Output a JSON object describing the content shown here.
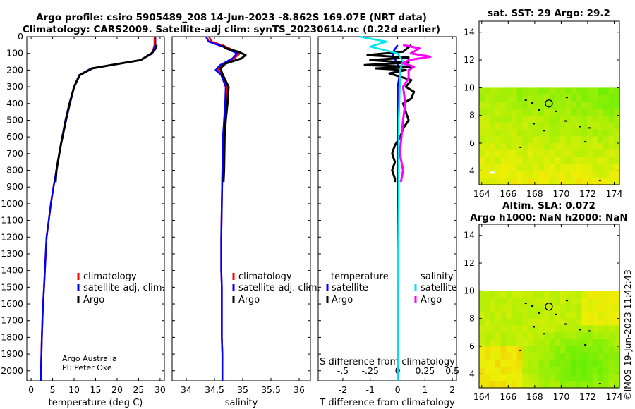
{
  "title": {
    "line1": "Argo profile: csiro 5905489_208 14-Jun-2023 -8.862S 169.07E (NRT data)",
    "line2": "Climatology: CARS2009. Satellite-adj clim: synTS_20230614.nc (0.22d earlier)"
  },
  "credit": {
    "line1": "Argo Australia",
    "line2": "PI: Peter Oke"
  },
  "imos_stamp": "©IMOS 19-Jun-2023 11:42:43",
  "colors": {
    "climatology": "#ff0000",
    "satellite": "#0000ff",
    "argo": "#000000",
    "temp_sat": "#0000ff",
    "temp_argo": "#000000",
    "sal_sat": "#00e5ee",
    "sal_argo": "#ff00ff"
  },
  "legend": {
    "climatology": "climatology",
    "satellite": "satellite-adj. clim.",
    "argo": "Argo"
  },
  "diff_legend": {
    "temperature": "temperature",
    "salinity": "salinity",
    "satellite_t": "satellite",
    "argo_t": "Argo",
    "satellite_s": "satellite",
    "argo_s": "Argo"
  },
  "chart_data": [
    {
      "type": "line",
      "name": "temperature",
      "xlabel": "temperature (deg C)",
      "xlim": [
        -1,
        31
      ],
      "ylim": [
        2060,
        0
      ],
      "xticks": [
        0,
        5,
        10,
        15,
        20,
        25,
        30
      ],
      "yticks": [
        0,
        100,
        200,
        300,
        400,
        500,
        600,
        700,
        800,
        900,
        1000,
        1100,
        1200,
        1300,
        1400,
        1500,
        1600,
        1700,
        1800,
        1900,
        2000
      ],
      "series": [
        {
          "name": "climatology",
          "x": [
            28.7,
            28.7,
            28.2,
            25.5,
            18.5,
            14,
            11.2,
            10,
            8.9,
            8,
            6.9,
            5.9,
            5.2,
            4.6,
            4.1,
            3.6,
            3.2,
            3,
            2.7,
            2.5,
            2.4,
            2.3,
            2.3
          ],
          "y": [
            0,
            50,
            100,
            140,
            170,
            190,
            230,
            300,
            400,
            500,
            650,
            800,
            900,
            1000,
            1100,
            1200,
            1400,
            1500,
            1650,
            1800,
            1900,
            2000,
            2060
          ]
        },
        {
          "name": "satellite-adj. clim.",
          "x": [
            28.9,
            28.9,
            28.2,
            25.5,
            18.5,
            14,
            11.2,
            10,
            8.9,
            8,
            6.9,
            5.9,
            5.2,
            4.6,
            4.1,
            3.6,
            3.2,
            3,
            2.7,
            2.5,
            2.4,
            2.3,
            2.3
          ],
          "y": [
            0,
            50,
            100,
            140,
            170,
            190,
            230,
            300,
            400,
            500,
            650,
            800,
            900,
            1000,
            1100,
            1200,
            1400,
            1500,
            1650,
            1800,
            1900,
            2000,
            2060
          ]
        },
        {
          "name": "Argo",
          "x": [
            29.2,
            29,
            28,
            25.5,
            18.6,
            14.2,
            11.3,
            10,
            9,
            8.1,
            6.9,
            5.9,
            5.7
          ],
          "y": [
            50,
            70,
            100,
            140,
            170,
            190,
            230,
            300,
            400,
            500,
            650,
            800,
            870
          ]
        }
      ]
    },
    {
      "type": "line",
      "name": "salinity",
      "xlabel": "salinity",
      "xlim": [
        33.75,
        36.2
      ],
      "ylim": [
        2060,
        0
      ],
      "xticks": [
        34,
        34.5,
        35,
        35.5,
        36
      ],
      "series": [
        {
          "name": "climatology",
          "x": [
            34.4,
            34.45,
            34.7,
            34.95,
            34.85,
            34.62,
            34.55,
            34.65,
            34.72,
            34.7,
            34.68,
            34.65,
            34.64,
            34.63,
            34.62,
            34.62,
            34.63,
            34.63,
            34.63,
            34.64,
            34.64,
            34.64
          ],
          "y": [
            0,
            30,
            60,
            100,
            130,
            170,
            200,
            230,
            300,
            400,
            500,
            600,
            800,
            1000,
            1200,
            1400,
            1500,
            1600,
            1800,
            1900,
            2000,
            2060
          ]
        },
        {
          "name": "satellite-adj. clim.",
          "x": [
            34.35,
            34.4,
            34.65,
            34.9,
            34.82,
            34.6,
            34.52,
            34.62,
            34.7,
            34.69,
            34.67,
            34.65,
            34.64,
            34.63,
            34.62,
            34.62,
            34.63,
            34.63,
            34.63,
            34.64,
            34.64,
            34.64
          ],
          "y": [
            0,
            30,
            60,
            100,
            130,
            170,
            200,
            230,
            300,
            400,
            500,
            600,
            800,
            1000,
            1200,
            1400,
            1500,
            1600,
            1800,
            1900,
            2000,
            2060
          ]
        },
        {
          "name": "Argo",
          "x": [
            34.65,
            34.7,
            34.92,
            35.05,
            34.98,
            34.7,
            34.6,
            34.65,
            34.75,
            34.73,
            34.7,
            34.68,
            34.67,
            34.66
          ],
          "y": [
            50,
            70,
            90,
            110,
            130,
            160,
            190,
            230,
            300,
            400,
            500,
            600,
            800,
            870
          ]
        }
      ]
    },
    {
      "type": "line",
      "name": "difference from climatology",
      "xlabel": "T difference from climatology",
      "xlabel_top": "S difference from climatology",
      "xlim": [
        -2.9,
        2.15
      ],
      "ylim": [
        2060,
        0
      ],
      "xticks": [
        -2,
        -1,
        0,
        1,
        2
      ],
      "s_ticks": [
        -0.5,
        -0.25,
        0,
        0.25,
        0.5
      ],
      "series": [
        {
          "name": "temperature satellite",
          "x": [
            0,
            -0.2,
            -0.05,
            0.1,
            0.05,
            0,
            0,
            0,
            0,
            0,
            0
          ],
          "y": [
            50,
            100,
            150,
            200,
            250,
            300,
            500,
            1000,
            1500,
            2000,
            2060
          ]
        },
        {
          "name": "temperature Argo",
          "x": [
            0.5,
            0.2,
            -1.1,
            0.4,
            -1.0,
            0.4,
            -1.2,
            0.5,
            -0.8,
            0.3,
            -0.3,
            0.5,
            0.3,
            0.6,
            0.5,
            0.2,
            0.3,
            0.4,
            0.2,
            0.1,
            -0.1,
            -0.2,
            -0.1,
            -0.2,
            -0.1,
            -0.1
          ],
          "y": [
            50,
            90,
            110,
            125,
            140,
            155,
            170,
            180,
            190,
            200,
            220,
            260,
            300,
            330,
            370,
            400,
            450,
            500,
            550,
            600,
            650,
            700,
            750,
            800,
            850,
            870
          ]
        },
        {
          "name": "salinity satellite",
          "x": [
            -0.35,
            -0.1,
            -0.25,
            0,
            0.05,
            0.02,
            0.02,
            0.01,
            0.01,
            0,
            0,
            0
          ],
          "y": [
            0,
            30,
            60,
            100,
            150,
            200,
            300,
            500,
            1000,
            1500,
            2000,
            2060
          ]
        },
        {
          "name": "salinity Argo",
          "x": [
            0.05,
            0.2,
            0.12,
            0.3,
            0.1,
            0.05,
            0.15,
            0.1,
            0.1,
            0.05,
            0.07,
            0.05,
            0.02,
            0.05,
            0.03
          ],
          "y": [
            50,
            70,
            100,
            120,
            140,
            160,
            180,
            200,
            250,
            300,
            400,
            500,
            700,
            800,
            870
          ]
        }
      ]
    },
    {
      "type": "heatmap",
      "name": "sst map",
      "title": "sat. SST: 29 Argo: 29.2",
      "xlim": [
        163.8,
        174.4
      ],
      "ylim": [
        3,
        14.8
      ],
      "xticks": [
        164,
        166,
        168,
        170,
        172,
        174
      ],
      "yticks": [
        4,
        6,
        8,
        10,
        12,
        14
      ],
      "data_ymax": 10,
      "profile": {
        "x": 169.07,
        "y": 8.862
      }
    },
    {
      "type": "heatmap",
      "name": "altimetry map",
      "title": "Altim. SLA: 0.072",
      "subtitle": "Argo h1000: NaN h2000: NaN",
      "xlim": [
        163.8,
        174.4
      ],
      "ylim": [
        3,
        14.8
      ],
      "xticks": [
        164,
        166,
        168,
        170,
        172,
        174
      ],
      "yticks": [
        4,
        6,
        8,
        10,
        12,
        14
      ],
      "data_ymax": 10,
      "profile": {
        "x": 169.07,
        "y": 8.862
      }
    }
  ]
}
